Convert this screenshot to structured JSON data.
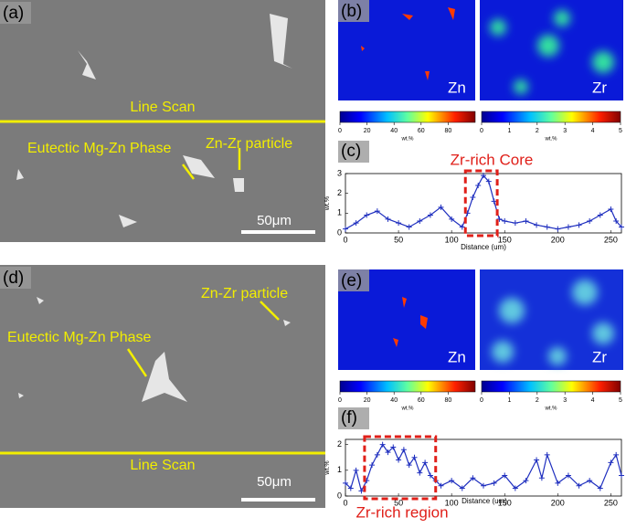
{
  "panels": {
    "a": {
      "label": "(a)",
      "line_scan": "Line Scan",
      "phase": "Eutectic Mg-Zn Phase",
      "particle": "Zn-Zr particle",
      "scale_bar": "50μm"
    },
    "b": {
      "label": "(b)",
      "maps": [
        "Zn",
        "Zr"
      ],
      "colorbars": [
        {
          "lim": [
            0,
            100
          ],
          "ticks": [
            0,
            20,
            40,
            60,
            80
          ],
          "unit": "wt.%"
        },
        {
          "lim": [
            0,
            5
          ],
          "ticks": [
            0,
            1,
            2,
            3,
            4,
            5
          ],
          "unit": "wt.%"
        }
      ]
    },
    "c": {
      "label": "(c)",
      "annotation": "Zr-rich Core",
      "chart_data": {
        "type": "line",
        "xlabel": "Distance (um)",
        "ylabel": "wt.%",
        "color": "#1f2fbf",
        "x": [
          0,
          10,
          20,
          30,
          40,
          50,
          60,
          70,
          80,
          90,
          100,
          110,
          115,
          120,
          125,
          130,
          135,
          140,
          145,
          150,
          160,
          170,
          180,
          190,
          200,
          210,
          220,
          230,
          240,
          250,
          255,
          260
        ],
        "values": [
          0.2,
          0.5,
          0.9,
          1.1,
          0.7,
          0.5,
          0.3,
          0.6,
          0.9,
          1.3,
          0.7,
          0.3,
          1.0,
          1.8,
          2.4,
          2.9,
          2.6,
          1.6,
          0.7,
          0.6,
          0.5,
          0.6,
          0.4,
          0.3,
          0.2,
          0.3,
          0.4,
          0.6,
          0.9,
          1.2,
          0.6,
          0.3
        ],
        "xlim": [
          0,
          260
        ],
        "xticks": [
          0,
          50,
          100,
          150,
          200,
          250
        ],
        "ylim": [
          0,
          3
        ],
        "yticks": [
          0,
          1,
          2,
          3
        ],
        "highlight": [
          113,
          143
        ]
      }
    },
    "d": {
      "label": "(d)",
      "line_scan": "Line Scan",
      "phase": "Eutectic Mg-Zn Phase",
      "particle": "Zn-Zr particle",
      "scale_bar": "50μm"
    },
    "e": {
      "label": "(e)",
      "maps": [
        "Zn",
        "Zr"
      ],
      "colorbars": [
        {
          "lim": [
            0,
            100
          ],
          "ticks": [
            0,
            20,
            40,
            60,
            80
          ],
          "unit": "wt.%"
        },
        {
          "lim": [
            0,
            5
          ],
          "ticks": [
            0,
            1,
            2,
            3,
            4,
            5
          ],
          "unit": "wt.%"
        }
      ]
    },
    "f": {
      "label": "(f)",
      "annotation": "Zr-rich region",
      "chart_data": {
        "type": "line",
        "xlabel": "Distance (um)",
        "ylabel": "wt.%",
        "color": "#1f2fbf",
        "x": [
          0,
          5,
          10,
          15,
          20,
          25,
          30,
          35,
          40,
          45,
          50,
          55,
          60,
          65,
          70,
          75,
          80,
          85,
          90,
          100,
          110,
          120,
          130,
          140,
          150,
          160,
          170,
          180,
          185,
          190,
          200,
          210,
          220,
          230,
          240,
          250,
          255,
          260
        ],
        "values": [
          0.5,
          0.3,
          1.0,
          0.2,
          0.6,
          1.2,
          1.6,
          2.0,
          1.7,
          1.9,
          1.4,
          1.8,
          1.2,
          1.5,
          0.9,
          1.3,
          0.8,
          0.6,
          0.4,
          0.6,
          0.3,
          0.7,
          0.4,
          0.5,
          0.8,
          0.3,
          0.6,
          1.4,
          0.7,
          1.6,
          0.5,
          0.8,
          0.4,
          0.6,
          0.3,
          1.3,
          1.6,
          0.8
        ],
        "xlim": [
          0,
          260
        ],
        "xticks": [
          0,
          50,
          100,
          150,
          200,
          250
        ],
        "ylim": [
          0,
          2.2
        ],
        "yticks": [
          0,
          1,
          2
        ],
        "highlight": [
          18,
          85
        ]
      }
    }
  }
}
